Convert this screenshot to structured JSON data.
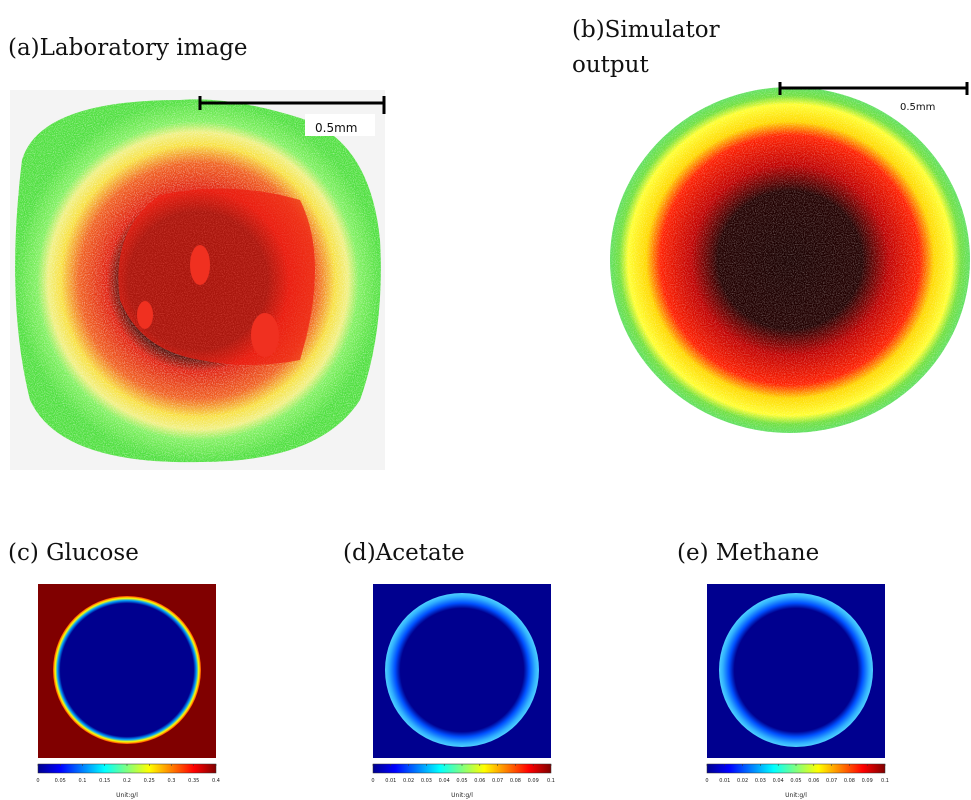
{
  "panels": [
    {
      "label": "(a)Laboratory image",
      "scale_label": "0.5mm"
    },
    {
      "label_lines": [
        "(b)Simulator",
        "output"
      ],
      "scale_label": "0.5mm"
    }
  ],
  "colormaps": [
    {
      "label": "(c) Glucose",
      "ticks": [
        0,
        0.05,
        0.1,
        0.15,
        0.2,
        0.25,
        0.3,
        0.35,
        0.4
      ],
      "unit": "Unit:g/l"
    },
    {
      "label": "(d)Acetate",
      "ticks": [
        0,
        0.01,
        0.02,
        0.03,
        0.04,
        0.05,
        0.06,
        0.07,
        0.08,
        0.09,
        0.1
      ],
      "unit": "Unit:g/l"
    },
    {
      "label": "(e) Methane",
      "ticks": [
        0,
        0.01,
        0.02,
        0.03,
        0.04,
        0.05,
        0.06,
        0.07,
        0.08,
        0.09,
        0.1
      ],
      "unit": "Unit:g/l"
    }
  ]
}
